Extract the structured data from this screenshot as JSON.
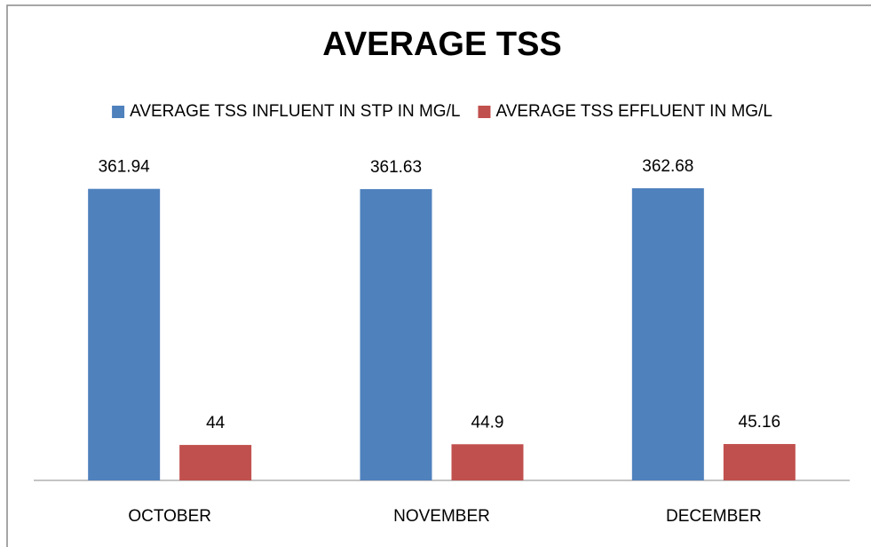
{
  "chart_data": {
    "type": "bar",
    "title": "AVERAGE TSS",
    "categories": [
      "OCTOBER",
      "NOVEMBER",
      "DECEMBER"
    ],
    "series": [
      {
        "name": "AVERAGE TSS INFLUENT IN STP IN MG/L",
        "color": "#4f81bd",
        "values": [
          361.94,
          361.63,
          362.68
        ]
      },
      {
        "name": "AVERAGE TSS EFFLUENT IN MG/L",
        "color": "#c0504d",
        "values": [
          44,
          44.9,
          45.16
        ]
      }
    ],
    "legend": "top"
  }
}
